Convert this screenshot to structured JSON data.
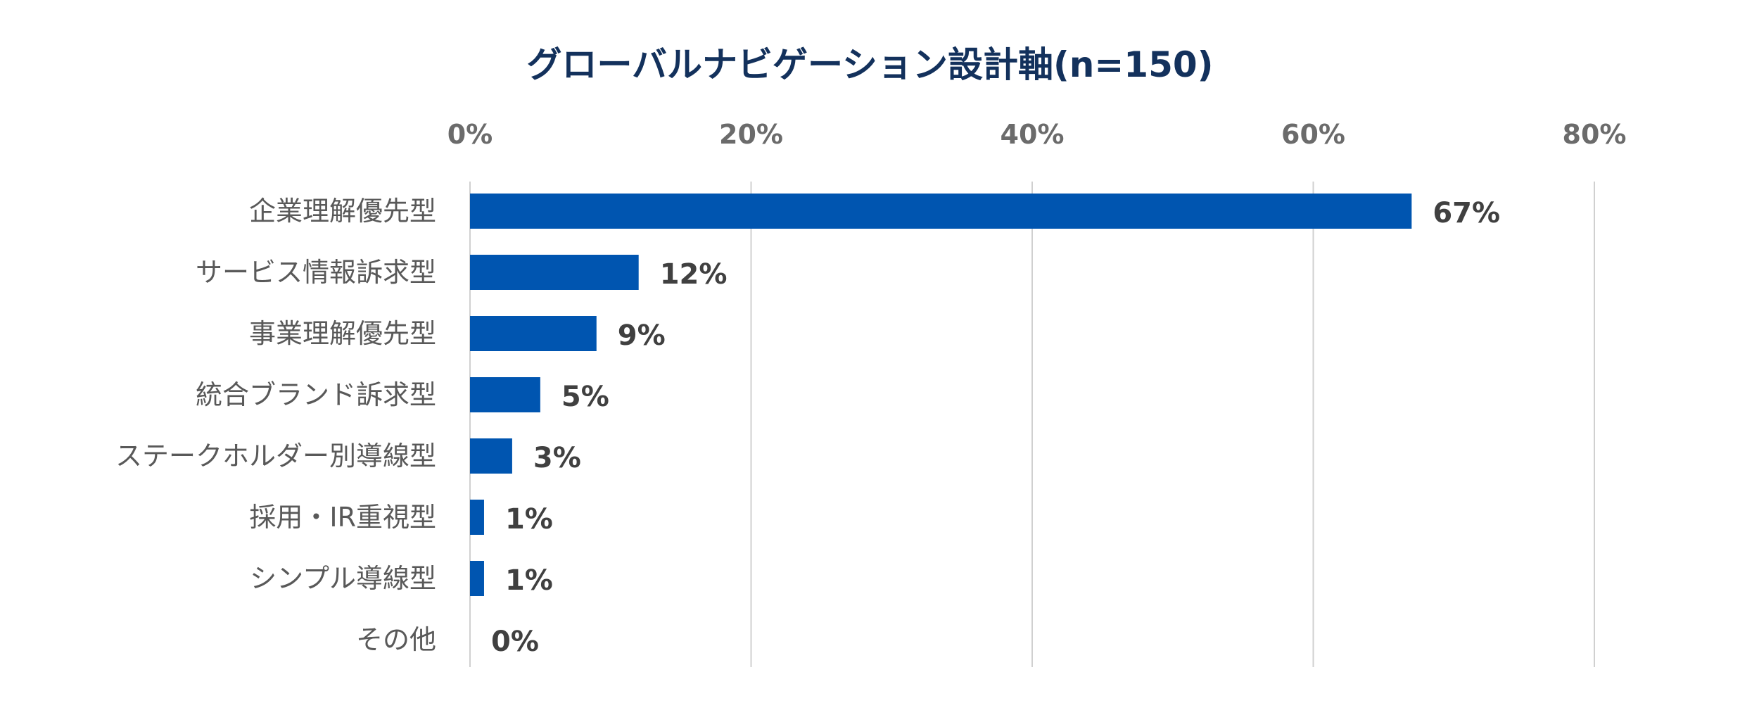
{
  "chart_data": {
    "type": "bar",
    "orientation": "horizontal",
    "title": "グローバルナビゲーション設計軸(n=150)",
    "categories": [
      "企業理解優先型",
      "サービス情報訴求型",
      "事業理解優先型",
      "統合ブランド訴求型",
      "ステークホルダー別導線型",
      "採用・IR重視型",
      "シンプル導線型",
      "その他"
    ],
    "values": [
      67,
      12,
      9,
      5,
      3,
      1,
      1,
      0
    ],
    "value_labels": [
      "67%",
      "12%",
      "9%",
      "5%",
      "3%",
      "1%",
      "1%",
      "0%"
    ],
    "xlim": [
      0,
      80
    ],
    "x_ticks": [
      0,
      20,
      40,
      60,
      80
    ],
    "x_tick_labels": [
      "0%",
      "20%",
      "40%",
      "60%",
      "80%"
    ],
    "x_axis_position": "top",
    "grid": true,
    "legend": "none",
    "colors": {
      "bar": "#0055b0",
      "title": "#13315c"
    }
  }
}
